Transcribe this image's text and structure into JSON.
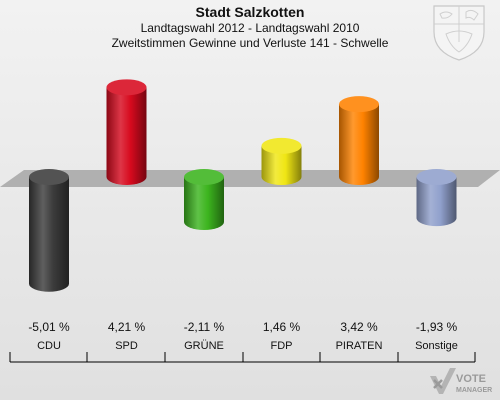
{
  "header": {
    "title": "Stadt Salzkotten",
    "subtitle1": "Landtagswahl 2012 - Landtagswahl 2010",
    "subtitle2": "Zweitstimmen Gewinne und Verluste 141 - Schwelle"
  },
  "logo": {
    "text_vote": "VOTE",
    "text_manager": "MANAGER",
    "icon": "vote-manager-logo-icon"
  },
  "crest": {
    "icon": "coat-of-arms-icon"
  },
  "chart_data": {
    "type": "bar",
    "title": "Stadt Salzkotten",
    "categories": [
      "CDU",
      "SPD",
      "GRÜNE",
      "FDP",
      "PIRATEN",
      "Sonstige"
    ],
    "values": [
      -5.01,
      4.21,
      -2.11,
      1.46,
      3.42,
      -1.93
    ],
    "value_labels": [
      "-5,01 %",
      "4,21 %",
      "-2,11 %",
      "1,46 %",
      "3,42 %",
      "-1,93 %"
    ],
    "colors": [
      "#3c3c3c",
      "#d70a1e",
      "#3cb41e",
      "#f0e614",
      "#ff8200",
      "#90a0cc"
    ],
    "unit": "%",
    "grid": false,
    "legend": "none"
  }
}
